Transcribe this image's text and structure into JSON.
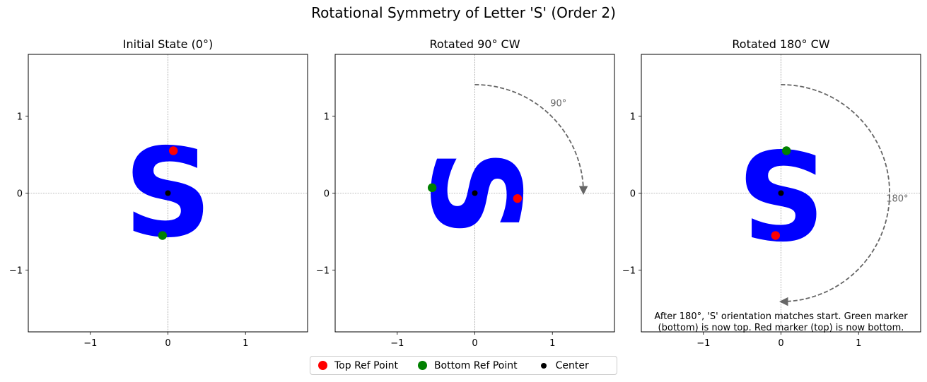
{
  "suptitle": "Rotational Symmetry of Letter 'S' (Order 2)",
  "colors": {
    "letter": "#0000ff",
    "top_ref": "#ff0000",
    "bottom_ref": "#008000",
    "center": "#000000",
    "arc": "#666666",
    "crosshair": "#808080"
  },
  "chart_data": [
    {
      "type": "scatter",
      "title": "Initial State (0°)",
      "xlim": [
        -1.8,
        1.8
      ],
      "ylim": [
        -1.8,
        1.8
      ],
      "xticks": [
        -1,
        0,
        1
      ],
      "yticks": [
        -1,
        0,
        1
      ],
      "letter": "S",
      "rotation_deg": 0,
      "points": [
        {
          "series": "Top Ref Point",
          "x": 0.07,
          "y": 0.55
        },
        {
          "series": "Bottom Ref Point",
          "x": -0.07,
          "y": -0.55
        },
        {
          "series": "Center",
          "x": 0,
          "y": 0
        }
      ],
      "arc": null,
      "annotation": ""
    },
    {
      "type": "scatter",
      "title": "Rotated 90° CW",
      "xlim": [
        -1.8,
        1.8
      ],
      "ylim": [
        -1.8,
        1.8
      ],
      "xticks": [
        -1,
        0,
        1
      ],
      "yticks": [
        -1,
        0,
        1
      ],
      "letter": "S",
      "rotation_deg": 90,
      "points": [
        {
          "series": "Top Ref Point",
          "x": 0.55,
          "y": -0.07
        },
        {
          "series": "Bottom Ref Point",
          "x": -0.55,
          "y": 0.07
        },
        {
          "series": "Center",
          "x": 0,
          "y": 0
        }
      ],
      "arc": {
        "radius": 1.4,
        "degrees": 90,
        "label": "90°"
      },
      "annotation": ""
    },
    {
      "type": "scatter",
      "title": "Rotated 180° CW",
      "xlim": [
        -1.8,
        1.8
      ],
      "ylim": [
        -1.8,
        1.8
      ],
      "xticks": [
        -1,
        0,
        1
      ],
      "yticks": [
        -1,
        0,
        1
      ],
      "letter": "S",
      "rotation_deg": 180,
      "points": [
        {
          "series": "Top Ref Point",
          "x": -0.07,
          "y": -0.55
        },
        {
          "series": "Bottom Ref Point",
          "x": 0.07,
          "y": 0.55
        },
        {
          "series": "Center",
          "x": 0,
          "y": 0
        }
      ],
      "arc": {
        "radius": 1.4,
        "degrees": 180,
        "label": "180°"
      },
      "annotation": [
        "After 180°, 'S' orientation matches start. Green marker",
        "(bottom) is now top. Red marker (top) is now bottom."
      ]
    }
  ],
  "legend": {
    "items": [
      {
        "label": "Top Ref Point",
        "color": "#ff0000",
        "marker": "large-dot"
      },
      {
        "label": "Bottom Ref Point",
        "color": "#008000",
        "marker": "large-dot"
      },
      {
        "label": "Center",
        "color": "#000000",
        "marker": "small-dot"
      }
    ]
  }
}
